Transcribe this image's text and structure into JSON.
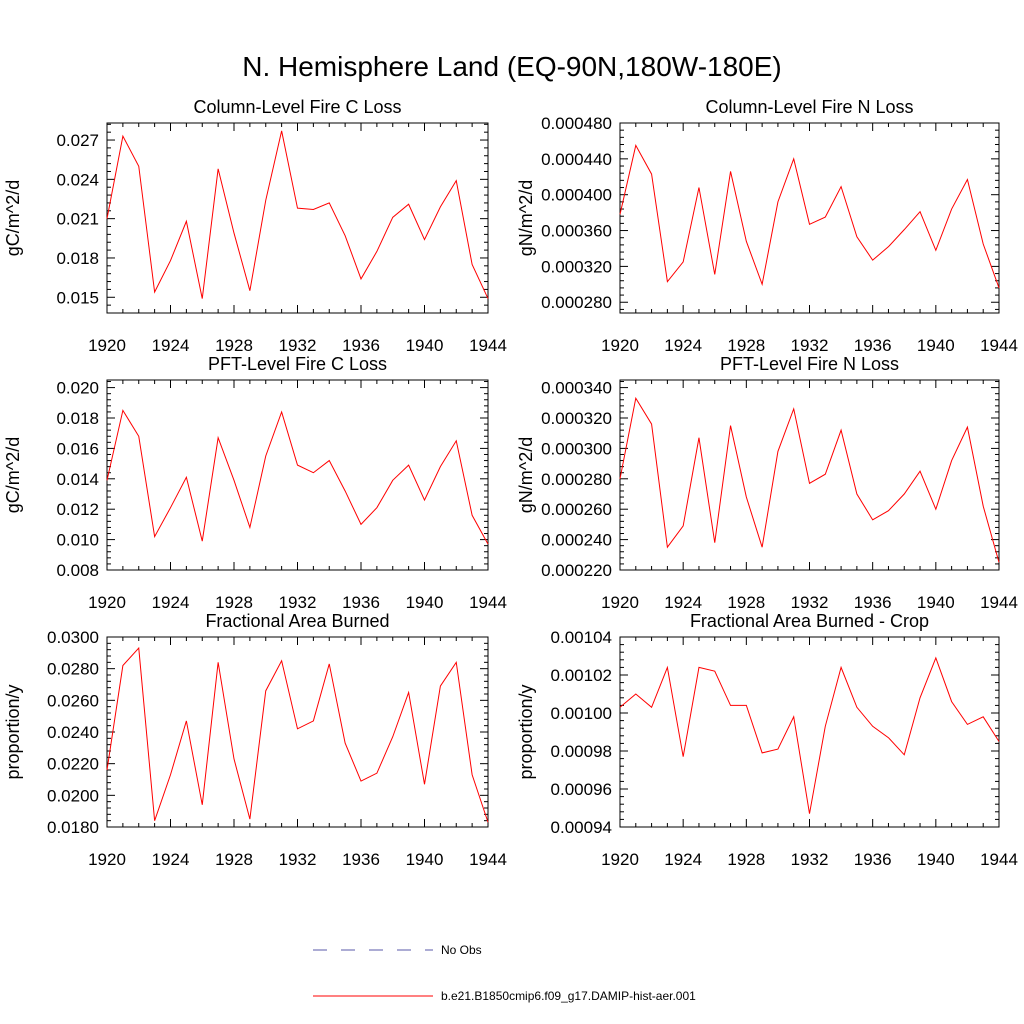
{
  "main_title": "N. Hemisphere Land (EQ-90N,180W-180E)",
  "legend": [
    {
      "label": "No Obs",
      "style": "dashed",
      "color": "#5a5aa8"
    },
    {
      "label": "b.e21.B1850cmip6.f09_g17.DAMIP-hist-aer.001",
      "style": "solid",
      "color": "#ff0000"
    }
  ],
  "chart_data": [
    {
      "type": "line",
      "title": "Column-Level Fire C Loss",
      "ylabel": "gC/m^2/d",
      "xlim": [
        1920,
        1944
      ],
      "ylim": [
        0.0138,
        0.0283
      ],
      "xticks": [
        1920,
        1924,
        1928,
        1932,
        1936,
        1940,
        1944
      ],
      "xtick_labels": [
        "1920",
        "1924",
        "1928",
        "1932",
        "1936",
        "1940",
        "1944"
      ],
      "yticks": [
        0.015,
        0.018,
        0.021,
        0.024,
        0.027
      ],
      "ytick_labels": [
        "0.015",
        "0.018",
        "0.021",
        "0.024",
        "0.027"
      ],
      "series": [
        {
          "name": "b.e21.B1850cmip6.f09_g17.DAMIP-hist-aer.001",
          "color": "#ff0000",
          "x": [
            1920,
            1921,
            1922,
            1923,
            1924,
            1925,
            1926,
            1927,
            1928,
            1929,
            1930,
            1931,
            1932,
            1933,
            1934,
            1935,
            1936,
            1937,
            1938,
            1939,
            1940,
            1941,
            1942,
            1943,
            1944
          ],
          "y": [
            0.021,
            0.0273,
            0.025,
            0.0154,
            0.0178,
            0.0208,
            0.0149,
            0.0248,
            0.0199,
            0.0155,
            0.0224,
            0.0277,
            0.0218,
            0.0217,
            0.0222,
            0.0197,
            0.0164,
            0.0185,
            0.0211,
            0.0221,
            0.0194,
            0.0219,
            0.0239,
            0.0175,
            0.0149
          ]
        }
      ]
    },
    {
      "type": "line",
      "title": "Column-Level Fire N Loss",
      "ylabel": "gN/m^2/d",
      "xlim": [
        1920,
        1944
      ],
      "ylim": [
        0.000268,
        0.00048
      ],
      "xticks": [
        1920,
        1924,
        1928,
        1932,
        1936,
        1940,
        1944
      ],
      "xtick_labels": [
        "1920",
        "1924",
        "1928",
        "1932",
        "1936",
        "1940",
        "1944"
      ],
      "yticks": [
        0.00028,
        0.00032,
        0.00036,
        0.0004,
        0.00044,
        0.00048
      ],
      "ytick_labels": [
        "0.000280",
        "0.000320",
        "0.000360",
        "0.000400",
        "0.000440",
        "0.000480"
      ],
      "series": [
        {
          "name": "b.e21.B1850cmip6.f09_g17.DAMIP-hist-aer.001",
          "color": "#ff0000",
          "x": [
            1920,
            1921,
            1922,
            1923,
            1924,
            1925,
            1926,
            1927,
            1928,
            1929,
            1930,
            1931,
            1932,
            1933,
            1934,
            1935,
            1936,
            1937,
            1938,
            1939,
            1940,
            1941,
            1942,
            1943,
            1944
          ],
          "y": [
            0.000378,
            0.000455,
            0.000423,
            0.000303,
            0.000325,
            0.000408,
            0.000311,
            0.000426,
            0.000348,
            0.0003,
            0.000392,
            0.00044,
            0.000367,
            0.000375,
            0.000409,
            0.000353,
            0.000327,
            0.000342,
            0.000361,
            0.000381,
            0.000338,
            0.000384,
            0.000417,
            0.000345,
            0.000296
          ]
        }
      ]
    },
    {
      "type": "line",
      "title": "PFT-Level Fire C Loss",
      "ylabel": "gC/m^2/d",
      "xlim": [
        1920,
        1944
      ],
      "ylim": [
        0.008,
        0.0205
      ],
      "xticks": [
        1920,
        1924,
        1928,
        1932,
        1936,
        1940,
        1944
      ],
      "xtick_labels": [
        "1920",
        "1924",
        "1928",
        "1932",
        "1936",
        "1940",
        "1944"
      ],
      "yticks": [
        0.008,
        0.01,
        0.012,
        0.014,
        0.016,
        0.018,
        0.02
      ],
      "ytick_labels": [
        "0.008",
        "0.010",
        "0.012",
        "0.014",
        "0.016",
        "0.018",
        "0.020"
      ],
      "series": [
        {
          "name": "b.e21.B1850cmip6.f09_g17.DAMIP-hist-aer.001",
          "color": "#ff0000",
          "x": [
            1920,
            1921,
            1922,
            1923,
            1924,
            1925,
            1926,
            1927,
            1928,
            1929,
            1930,
            1931,
            1932,
            1933,
            1934,
            1935,
            1936,
            1937,
            1938,
            1939,
            1940,
            1941,
            1942,
            1943,
            1944
          ],
          "y": [
            0.0139,
            0.0185,
            0.0168,
            0.0102,
            0.0121,
            0.0141,
            0.0099,
            0.0167,
            0.0139,
            0.0108,
            0.0155,
            0.0184,
            0.0149,
            0.0144,
            0.0152,
            0.0132,
            0.011,
            0.0121,
            0.0139,
            0.0149,
            0.0126,
            0.0148,
            0.0165,
            0.0116,
            0.0097
          ]
        }
      ]
    },
    {
      "type": "line",
      "title": "PFT-Level Fire N Loss",
      "ylabel": "gN/m^2/d",
      "xlim": [
        1920,
        1944
      ],
      "ylim": [
        0.00022,
        0.000345
      ],
      "xticks": [
        1920,
        1924,
        1928,
        1932,
        1936,
        1940,
        1944
      ],
      "xtick_labels": [
        "1920",
        "1924",
        "1928",
        "1932",
        "1936",
        "1940",
        "1944"
      ],
      "yticks": [
        0.00022,
        0.00024,
        0.00026,
        0.00028,
        0.0003,
        0.00032,
        0.00034
      ],
      "ytick_labels": [
        "0.000220",
        "0.000240",
        "0.000260",
        "0.000280",
        "0.000300",
        "0.000320",
        "0.000340"
      ],
      "series": [
        {
          "name": "b.e21.B1850cmip6.f09_g17.DAMIP-hist-aer.001",
          "color": "#ff0000",
          "x": [
            1920,
            1921,
            1922,
            1923,
            1924,
            1925,
            1926,
            1927,
            1928,
            1929,
            1930,
            1931,
            1932,
            1933,
            1934,
            1935,
            1936,
            1937,
            1938,
            1939,
            1940,
            1941,
            1942,
            1943,
            1944
          ],
          "y": [
            0.00028,
            0.000333,
            0.000316,
            0.000235,
            0.000249,
            0.000307,
            0.000238,
            0.000315,
            0.000268,
            0.000235,
            0.000298,
            0.000326,
            0.000277,
            0.000283,
            0.000312,
            0.00027,
            0.000253,
            0.000259,
            0.00027,
            0.000285,
            0.00026,
            0.000292,
            0.000314,
            0.000262,
            0.000225
          ]
        }
      ]
    },
    {
      "type": "line",
      "title": "Fractional Area Burned",
      "ylabel": "proportion/y",
      "xlim": [
        1920,
        1944
      ],
      "ylim": [
        0.018,
        0.03
      ],
      "xticks": [
        1920,
        1924,
        1928,
        1932,
        1936,
        1940,
        1944
      ],
      "xtick_labels": [
        "1920",
        "1924",
        "1928",
        "1932",
        "1936",
        "1940",
        "1944"
      ],
      "yticks": [
        0.018,
        0.02,
        0.022,
        0.024,
        0.026,
        0.028,
        0.03
      ],
      "ytick_labels": [
        "0.0180",
        "0.0200",
        "0.0220",
        "0.0240",
        "0.0260",
        "0.0280",
        "0.0300"
      ],
      "series": [
        {
          "name": "b.e21.B1850cmip6.f09_g17.DAMIP-hist-aer.001",
          "color": "#ff0000",
          "x": [
            1920,
            1921,
            1922,
            1923,
            1924,
            1925,
            1926,
            1927,
            1928,
            1929,
            1930,
            1931,
            1932,
            1933,
            1934,
            1935,
            1936,
            1937,
            1938,
            1939,
            1940,
            1941,
            1942,
            1943,
            1944
          ],
          "y": [
            0.0216,
            0.0282,
            0.0293,
            0.0184,
            0.0213,
            0.0247,
            0.0194,
            0.0284,
            0.0223,
            0.0185,
            0.0266,
            0.0285,
            0.0242,
            0.0247,
            0.0283,
            0.0233,
            0.0209,
            0.0214,
            0.0237,
            0.0265,
            0.0207,
            0.0269,
            0.0284,
            0.0213,
            0.0183
          ]
        }
      ]
    },
    {
      "type": "line",
      "title": "Fractional Area Burned - Crop",
      "ylabel": "proportion/y",
      "xlim": [
        1920,
        1944
      ],
      "ylim": [
        0.00094,
        0.00104
      ],
      "xticks": [
        1920,
        1924,
        1928,
        1932,
        1936,
        1940,
        1944
      ],
      "xtick_labels": [
        "1920",
        "1924",
        "1928",
        "1932",
        "1936",
        "1940",
        "1944"
      ],
      "yticks": [
        0.00094,
        0.00096,
        0.00098,
        0.001,
        0.00102,
        0.00104
      ],
      "ytick_labels": [
        "0.00094",
        "0.00096",
        "0.00098",
        "0.00100",
        "0.00102",
        "0.00104"
      ],
      "series": [
        {
          "name": "b.e21.B1850cmip6.f09_g17.DAMIP-hist-aer.001",
          "color": "#ff0000",
          "x": [
            1920,
            1921,
            1922,
            1923,
            1924,
            1925,
            1926,
            1927,
            1928,
            1929,
            1930,
            1931,
            1932,
            1933,
            1934,
            1935,
            1936,
            1937,
            1938,
            1939,
            1940,
            1941,
            1942,
            1943,
            1944
          ],
          "y": [
            0.001003,
            0.00101,
            0.001003,
            0.001024,
            0.000977,
            0.001024,
            0.001022,
            0.001004,
            0.001004,
            0.000979,
            0.000981,
            0.000998,
            0.000947,
            0.000993,
            0.001024,
            0.001003,
            0.000993,
            0.000987,
            0.000978,
            0.001008,
            0.001029,
            0.001006,
            0.000994,
            0.000998,
            0.000985
          ]
        }
      ]
    }
  ]
}
